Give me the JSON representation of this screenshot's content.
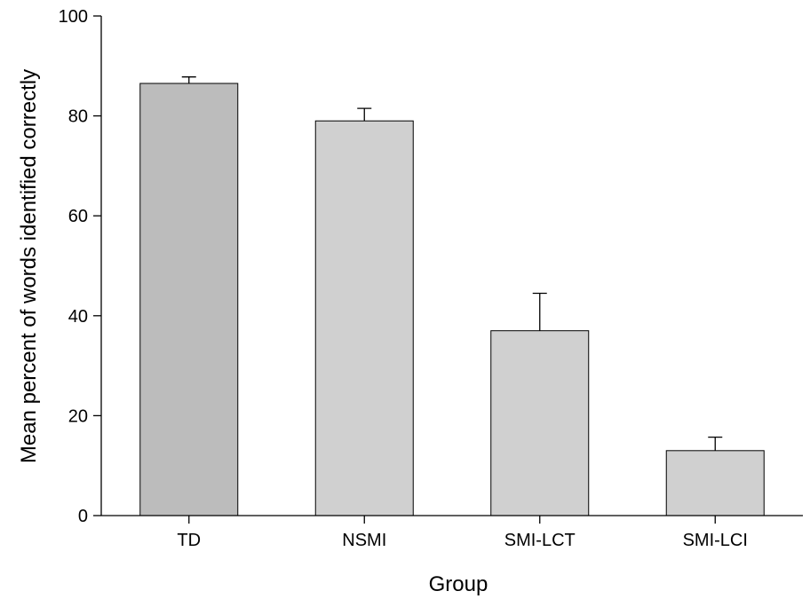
{
  "chart_data": {
    "type": "bar",
    "categories": [
      "TD",
      "NSMI",
      "SMI-LCT",
      "SMI-LCI"
    ],
    "values": [
      86.5,
      79.0,
      37.0,
      13.0
    ],
    "error_upper": [
      1.3,
      2.5,
      7.5,
      2.7
    ],
    "bar_colors": [
      "#bcbcbc",
      "#d0d0d0",
      "#d0d0d0",
      "#d0d0d0"
    ],
    "xlabel": "Group",
    "ylabel": "Mean percent of words identified correctly",
    "ylim": [
      0,
      100
    ],
    "yticks": [
      0,
      20,
      40,
      60,
      80,
      100
    ],
    "grid": false
  }
}
